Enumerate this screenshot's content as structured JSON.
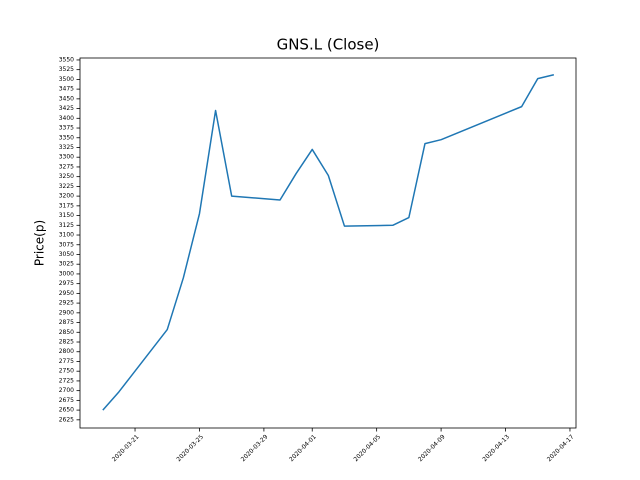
{
  "chart_data": {
    "type": "line",
    "title": "GNS.L (Close)",
    "y_label": "Price(p)",
    "x": [
      "2020-03-19",
      "2020-03-20",
      "2020-03-23",
      "2020-03-24",
      "2020-03-25",
      "2020-03-26",
      "2020-03-27",
      "2020-03-30",
      "2020-03-31",
      "2020-04-01",
      "2020-04-02",
      "2020-04-03",
      "2020-04-06",
      "2020-04-07",
      "2020-04-08",
      "2020-04-09",
      "2020-04-14",
      "2020-04-15",
      "2020-04-16"
    ],
    "series": [
      {
        "name": "Close",
        "color": "#1f77b4",
        "values": [
          2650,
          2697,
          2857,
          2990,
          3155,
          3420,
          3200,
          3190,
          3258,
          3320,
          3253,
          3123,
          3125,
          3145,
          3335,
          3345,
          3430,
          3502,
          3512
        ]
      }
    ],
    "xlim": [
      "2020-03-17T14:00Z",
      "2020-04-17T09:00Z"
    ],
    "xticks": [
      "2020-03-21",
      "2020-03-25",
      "2020-03-29",
      "2020-04-01",
      "2020-04-05",
      "2020-04-09",
      "2020-04-13",
      "2020-04-17"
    ],
    "ylim": [
      2604,
      3555
    ],
    "yticks": [
      2625,
      2650,
      2675,
      2700,
      2725,
      2750,
      2775,
      2800,
      2825,
      2850,
      2875,
      2900,
      2925,
      2950,
      2975,
      3000,
      3025,
      3050,
      3075,
      3100,
      3125,
      3150,
      3175,
      3200,
      3225,
      3250,
      3275,
      3300,
      3325,
      3350,
      3375,
      3400,
      3425,
      3450,
      3475,
      3500,
      3525,
      3550
    ]
  }
}
